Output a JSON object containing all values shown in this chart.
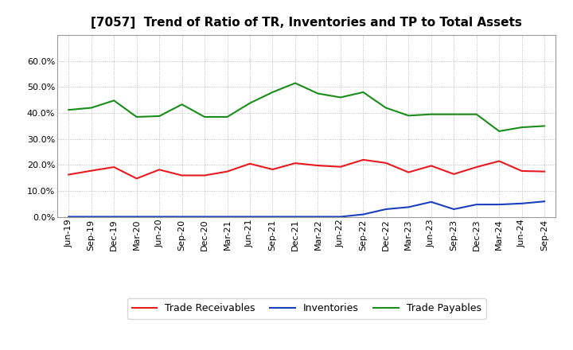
{
  "title": "[7057]  Trend of Ratio of TR, Inventories and TP to Total Assets",
  "x_labels": [
    "Jun-19",
    "Sep-19",
    "Dec-19",
    "Mar-20",
    "Jun-20",
    "Sep-20",
    "Dec-20",
    "Mar-21",
    "Jun-21",
    "Sep-21",
    "Dec-21",
    "Mar-22",
    "Jun-22",
    "Sep-22",
    "Dec-22",
    "Mar-23",
    "Jun-23",
    "Sep-23",
    "Dec-23",
    "Mar-24",
    "Jun-24",
    "Sep-24"
  ],
  "trade_receivables": [
    0.163,
    0.178,
    0.192,
    0.148,
    0.182,
    0.16,
    0.16,
    0.175,
    0.205,
    0.183,
    0.207,
    0.198,
    0.193,
    0.22,
    0.208,
    0.172,
    0.197,
    0.165,
    0.192,
    0.215,
    0.177,
    0.175
  ],
  "inventories": [
    0.001,
    0.001,
    0.001,
    0.001,
    0.001,
    0.001,
    0.001,
    0.001,
    0.001,
    0.001,
    0.001,
    0.001,
    0.001,
    0.01,
    0.03,
    0.038,
    0.058,
    0.03,
    0.048,
    0.048,
    0.052,
    0.06
  ],
  "trade_payables": [
    0.412,
    0.42,
    0.448,
    0.385,
    0.388,
    0.433,
    0.385,
    0.385,
    0.438,
    0.48,
    0.515,
    0.475,
    0.46,
    0.48,
    0.42,
    0.39,
    0.395,
    0.395,
    0.395,
    0.33,
    0.345,
    0.35
  ],
  "tr_color": "#e8191f",
  "inv_color": "#1a3fbd",
  "tp_color": "#1a8c1a",
  "legend_labels": [
    "Trade Receivables",
    "Inventories",
    "Trade Payables"
  ],
  "ylim": [
    0.0,
    0.7
  ],
  "yticks": [
    0.0,
    0.1,
    0.2,
    0.3,
    0.4,
    0.5,
    0.6
  ],
  "background_color": "#ffffff",
  "grid_color": "#aaaaaa",
  "line_width": 1.5,
  "title_fontsize": 11,
  "tick_fontsize": 8,
  "legend_fontsize": 9
}
